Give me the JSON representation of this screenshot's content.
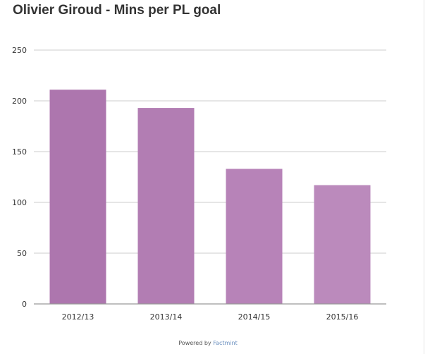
{
  "title": "Olivier Giroud - Mins per PL goal",
  "footer": {
    "prefix": "Powered by ",
    "brand": "Factmint"
  },
  "colors": {
    "bars": [
      "#ad76ae",
      "#b27db3",
      "#b783b8",
      "#bb8abc"
    ],
    "grid": "#cccccc",
    "axis": "#999999",
    "text": "#333333"
  },
  "chart_data": {
    "type": "bar",
    "title": "Olivier Giroud - Mins per PL goal",
    "categories": [
      "2012/13",
      "2013/14",
      "2014/15",
      "2015/16"
    ],
    "values": [
      211,
      193,
      133,
      117
    ],
    "xlabel": "",
    "ylabel": "",
    "ylim": [
      0,
      250
    ],
    "yticks": [
      0,
      50,
      100,
      150,
      200,
      250
    ],
    "grid": true,
    "legend": "none"
  }
}
